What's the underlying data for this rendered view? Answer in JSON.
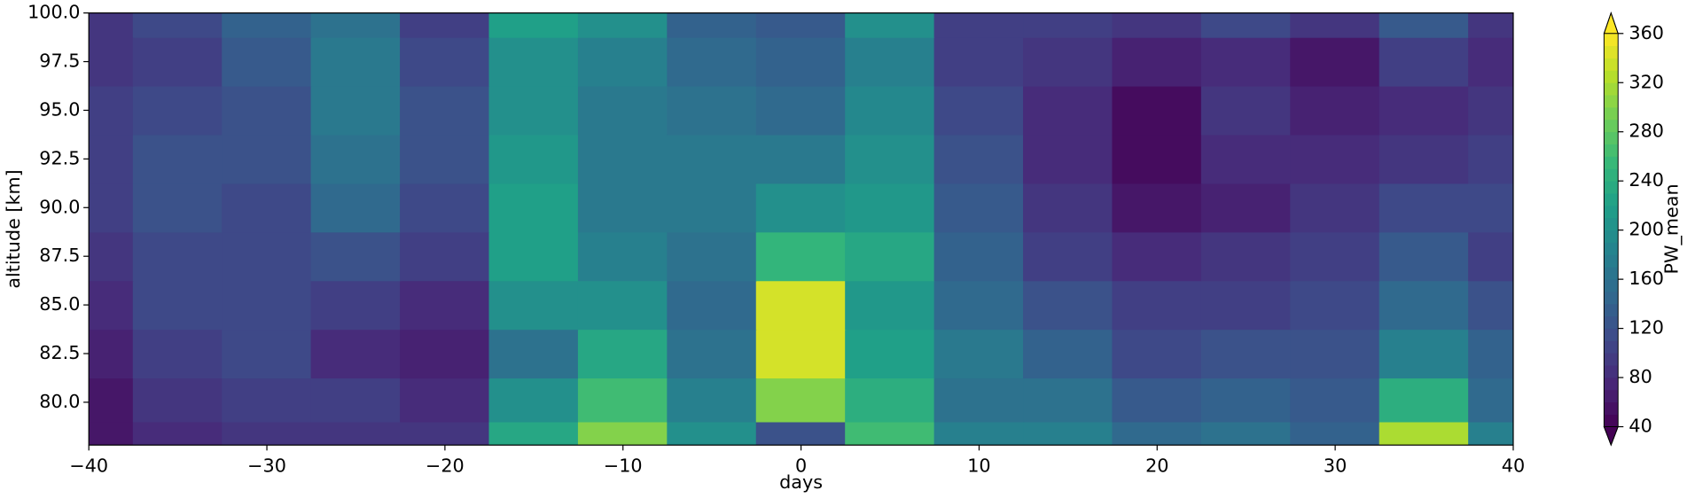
{
  "chart_data": {
    "type": "contourf",
    "x_label": "days",
    "y_label": "altitude [km]",
    "colorbar_label": "PW_mean",
    "colormap": "viridis",
    "x": [
      -40,
      -35,
      -30,
      -25,
      -20,
      -15,
      -10,
      -5,
      0,
      5,
      10,
      15,
      20,
      25,
      30,
      35,
      40
    ],
    "y": [
      78,
      80,
      82.5,
      85,
      87.5,
      90,
      92.5,
      95,
      97.5,
      100
    ],
    "z": [
      [
        60,
        80,
        90,
        90,
        90,
        230,
        300,
        200,
        120,
        260,
        180,
        180,
        150,
        160,
        140,
        320,
        180
      ],
      [
        60,
        90,
        100,
        100,
        80,
        200,
        260,
        180,
        300,
        240,
        160,
        160,
        130,
        140,
        130,
        240,
        150
      ],
      [
        70,
        100,
        110,
        80,
        70,
        160,
        230,
        160,
        340,
        220,
        170,
        140,
        110,
        120,
        120,
        180,
        140
      ],
      [
        80,
        110,
        110,
        100,
        80,
        200,
        200,
        150,
        340,
        210,
        150,
        120,
        100,
        100,
        110,
        150,
        120
      ],
      [
        90,
        110,
        110,
        120,
        100,
        220,
        180,
        160,
        250,
        230,
        140,
        100,
        80,
        90,
        100,
        130,
        100
      ],
      [
        100,
        120,
        110,
        150,
        110,
        220,
        170,
        170,
        200,
        210,
        130,
        90,
        60,
        70,
        90,
        110,
        110
      ],
      [
        100,
        120,
        120,
        160,
        120,
        210,
        170,
        170,
        170,
        200,
        120,
        80,
        50,
        80,
        80,
        90,
        100
      ],
      [
        100,
        110,
        120,
        170,
        120,
        200,
        170,
        160,
        150,
        190,
        110,
        80,
        50,
        90,
        70,
        80,
        90
      ],
      [
        90,
        100,
        130,
        170,
        110,
        200,
        180,
        150,
        140,
        180,
        100,
        90,
        70,
        80,
        60,
        100,
        80
      ],
      [
        90,
        110,
        140,
        160,
        100,
        220,
        200,
        140,
        130,
        200,
        100,
        100,
        90,
        110,
        90,
        130,
        90
      ]
    ],
    "xlim": [
      -40,
      40
    ],
    "xticks": [
      {
        "value": -40,
        "label": "−40"
      },
      {
        "value": -30,
        "label": "−30"
      },
      {
        "value": -20,
        "label": "−20"
      },
      {
        "value": -10,
        "label": "−10"
      },
      0,
      10,
      20,
      30,
      40
    ],
    "ylim": [
      77.8,
      100
    ],
    "yticks": [
      {
        "value": 80,
        "label": "80.0"
      },
      {
        "value": 82.5,
        "label": "82.5"
      },
      {
        "value": 85,
        "label": "85.0"
      },
      {
        "value": 87.5,
        "label": "87.5"
      },
      {
        "value": 90,
        "label": "90.0"
      },
      {
        "value": 92.5,
        "label": "92.5"
      },
      {
        "value": 95,
        "label": "95.0"
      },
      {
        "value": 97.5,
        "label": "97.5"
      },
      {
        "value": 100,
        "label": "100.0"
      }
    ],
    "clim": [
      40,
      360
    ],
    "cticks": [
      40,
      80,
      120,
      160,
      200,
      240,
      280,
      320,
      360
    ]
  }
}
